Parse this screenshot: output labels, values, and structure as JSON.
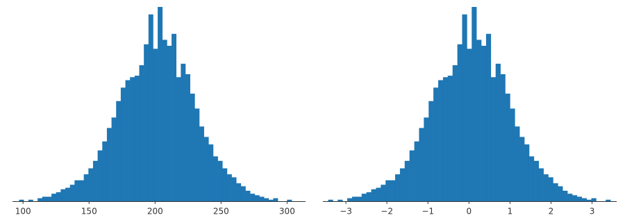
{
  "chart_data": [
    {
      "type": "histogram",
      "color": "#1f77b4",
      "bins": [
        97,
        100.5,
        104,
        107.5,
        111,
        114.5,
        118,
        121.5,
        125,
        128.5,
        132,
        135.5,
        139,
        142.5,
        146,
        149.5,
        153,
        156.5,
        160,
        163.5,
        167,
        170.5,
        174,
        177.5,
        181,
        184.5,
        188,
        191.5,
        195,
        198.5,
        202,
        205.5,
        209,
        212.5,
        216,
        219.5,
        223,
        226.5,
        230,
        233.5,
        237,
        240.5,
        244,
        247.5,
        251,
        254.5,
        258,
        261.5,
        265,
        268.5,
        272,
        275.5,
        279,
        282.5,
        286,
        289.5,
        293,
        296.5,
        300,
        303.5,
        307
      ],
      "values": [
        1,
        0,
        1,
        0,
        2,
        3,
        3,
        5,
        6,
        8,
        9,
        11,
        14,
        14,
        18,
        22,
        27,
        34,
        40,
        49,
        56,
        67,
        76,
        81,
        83,
        84,
        91,
        105,
        125,
        102,
        130,
        108,
        104,
        112,
        83,
        92,
        85,
        72,
        62,
        50,
        43,
        38,
        30,
        27,
        22,
        18,
        16,
        12,
        10,
        7,
        5,
        4,
        3,
        2,
        1,
        2,
        0,
        0,
        1,
        0
      ],
      "xlim": [
        92,
        314
      ],
      "xticks": [
        100,
        150,
        200,
        250,
        300
      ]
    },
    {
      "type": "histogram",
      "color": "#1f77b4",
      "bins": [
        -3.433,
        -3.317,
        -3.2,
        -3.083,
        -2.967,
        -2.85,
        -2.733,
        -2.617,
        -2.5,
        -2.383,
        -2.267,
        -2.15,
        -2.033,
        -1.917,
        -1.8,
        -1.683,
        -1.567,
        -1.45,
        -1.333,
        -1.217,
        -1.1,
        -0.983,
        -0.867,
        -0.75,
        -0.633,
        -0.517,
        -0.4,
        -0.283,
        -0.167,
        -0.05,
        0.067,
        0.183,
        0.3,
        0.417,
        0.533,
        0.65,
        0.767,
        0.883,
        1.0,
        1.117,
        1.233,
        1.35,
        1.467,
        1.583,
        1.7,
        1.817,
        1.933,
        2.05,
        2.167,
        2.283,
        2.4,
        2.517,
        2.633,
        2.75,
        2.867,
        2.983,
        3.1,
        3.217,
        3.333,
        3.45,
        3.567
      ],
      "values": [
        1,
        0,
        1,
        0,
        2,
        3,
        3,
        5,
        6,
        8,
        9,
        11,
        14,
        14,
        18,
        22,
        27,
        34,
        40,
        49,
        56,
        67,
        76,
        81,
        83,
        84,
        91,
        105,
        125,
        102,
        130,
        108,
        104,
        112,
        83,
        92,
        85,
        72,
        62,
        50,
        43,
        38,
        30,
        27,
        22,
        18,
        16,
        12,
        10,
        7,
        5,
        4,
        3,
        2,
        1,
        2,
        0,
        0,
        1,
        0
      ],
      "xlim": [
        -3.56,
        3.6
      ],
      "xticks": [
        {
          "value": -3,
          "label": "−3"
        },
        {
          "value": -2,
          "label": "−2"
        },
        {
          "value": -1,
          "label": "−1"
        },
        0,
        1,
        2,
        3
      ]
    }
  ]
}
